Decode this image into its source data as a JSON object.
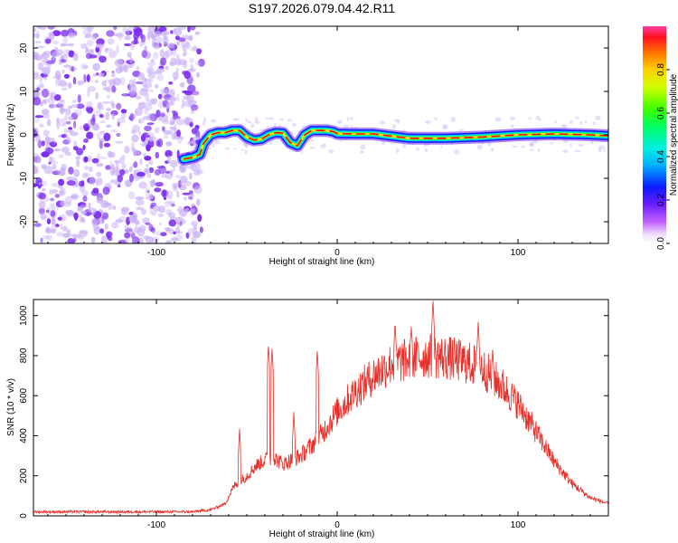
{
  "title": "S197.2026.079.04.42.R11",
  "colors": {
    "snr_line": "#e8302a",
    "noise_purple": "#7a2cf0",
    "noise_light": "#c8aef6",
    "track_red": "#e60a0a"
  },
  "chart_data": [
    {
      "type": "heatmap",
      "name": "spectrogram",
      "xlabel": "Height of straight line (km)",
      "ylabel": "Frequency (Hz)",
      "xlim": [
        -168,
        150
      ],
      "ylim": [
        -25,
        25
      ],
      "xticks": [
        -100,
        0,
        100
      ],
      "yticks": [
        -20,
        -10,
        0,
        10,
        20
      ],
      "xtick_labels": [
        "-100",
        "0",
        "100"
      ],
      "ytick_labels": [
        "-20",
        "-10",
        "0",
        "10",
        "20"
      ],
      "noise_region_end_km": -75,
      "signal_start_km": -85,
      "track": {
        "x": [
          -85,
          -80,
          -76,
          -74,
          -70,
          -66,
          -62,
          -58,
          -54,
          -50,
          -46,
          -42,
          -38,
          -34,
          -30,
          -26,
          -22,
          -18,
          -14,
          -10,
          -6,
          -2,
          0,
          10,
          20,
          40,
          60,
          80,
          100,
          120,
          140,
          150
        ],
        "y": [
          -5.6,
          -5.2,
          -4.5,
          -2.0,
          0.0,
          0.5,
          0.5,
          1.0,
          1.0,
          -0.5,
          -1.2,
          -1.0,
          0.0,
          0.5,
          0.4,
          -1.8,
          -2.5,
          0.0,
          1.0,
          1.0,
          1.0,
          0.7,
          0.3,
          0.2,
          0.2,
          -0.8,
          -0.8,
          -0.5,
          0.0,
          0.2,
          0.0,
          -0.2
        ]
      },
      "colorbar": {
        "label": "Normalized spectral amplitude",
        "range": [
          0.0,
          1.0
        ],
        "ticks": [
          0.0,
          0.2,
          0.4,
          0.6,
          0.8
        ],
        "tick_labels": [
          "0.0",
          "0.2",
          "0.4",
          "0.6",
          "0.8"
        ]
      }
    },
    {
      "type": "line",
      "name": "snr",
      "xlabel": "Height of straight line (km)",
      "ylabel": "SNR (10 * v/v)",
      "xlim": [
        -168,
        150
      ],
      "ylim": [
        0,
        1080
      ],
      "xticks": [
        -100,
        0,
        100
      ],
      "yticks": [
        0,
        200,
        400,
        600,
        800,
        1000
      ],
      "xtick_labels": [
        "-100",
        "0",
        "100"
      ],
      "ytick_labels": [
        "0",
        "200",
        "400",
        "600",
        "800",
        "1000"
      ],
      "envelope": {
        "x": [
          -168,
          -80,
          -70,
          -62,
          -57,
          -50,
          -45,
          -40,
          -35,
          -30,
          -20,
          -10,
          0,
          10,
          20,
          30,
          40,
          50,
          60,
          70,
          80,
          90,
          100,
          110,
          120,
          130,
          140,
          150
        ],
        "y": [
          20,
          20,
          30,
          60,
          150,
          200,
          250,
          280,
          290,
          260,
          300,
          390,
          520,
          620,
          700,
          760,
          780,
          800,
          790,
          770,
          740,
          660,
          560,
          420,
          270,
          160,
          90,
          60
        ]
      },
      "spikes": {
        "x": [
          -54,
          -51,
          -38,
          -36,
          -24,
          -11,
          53,
          32,
          41,
          78,
          86
        ],
        "y": [
          440,
          120,
          860,
          840,
          520,
          830,
          1075,
          970,
          950,
          970,
          840
        ]
      },
      "noise_amplitude": 35
    }
  ]
}
